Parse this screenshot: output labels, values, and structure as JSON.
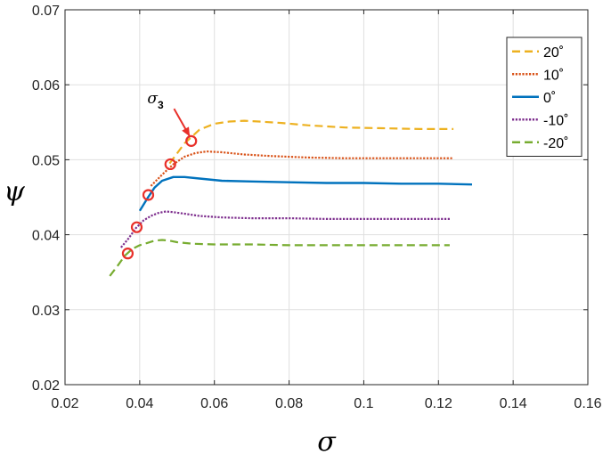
{
  "chart_data": {
    "type": "line",
    "xlabel": "σ",
    "ylabel": "ψ",
    "xlim": [
      0.02,
      0.16
    ],
    "ylim": [
      0.02,
      0.07
    ],
    "xticks": [
      "0.02",
      "0.04",
      "0.06",
      "0.08",
      "0.1",
      "0.12",
      "0.14",
      "0.16"
    ],
    "yticks": [
      "0.02",
      "0.03",
      "0.04",
      "0.05",
      "0.06",
      "0.07"
    ],
    "grid": true,
    "legend_position": "top-right",
    "series": [
      {
        "name": "20˚",
        "color": "#EDB120",
        "dash": "dashed",
        "x": [
          0.048,
          0.052,
          0.056,
          0.06,
          0.064,
          0.068,
          0.072,
          0.078,
          0.085,
          0.095,
          0.105,
          0.115,
          0.124
        ],
        "y": [
          0.0495,
          0.0522,
          0.054,
          0.0548,
          0.0551,
          0.0552,
          0.0551,
          0.0549,
          0.0546,
          0.0543,
          0.0542,
          0.0541,
          0.0541
        ]
      },
      {
        "name": "10˚",
        "color": "#D95319",
        "dash": "dotted",
        "x": [
          0.043,
          0.046,
          0.049,
          0.052,
          0.055,
          0.058,
          0.062,
          0.068,
          0.075,
          0.085,
          0.095,
          0.105,
          0.115,
          0.124
        ],
        "y": [
          0.0465,
          0.048,
          0.0494,
          0.0504,
          0.0509,
          0.0511,
          0.051,
          0.0507,
          0.0505,
          0.0503,
          0.0502,
          0.0502,
          0.0502,
          0.0502
        ]
      },
      {
        "name": "0˚",
        "color": "#0072BD",
        "dash": "solid",
        "x": [
          0.04,
          0.042,
          0.044,
          0.046,
          0.049,
          0.052,
          0.056,
          0.062,
          0.07,
          0.08,
          0.09,
          0.1,
          0.11,
          0.12,
          0.129
        ],
        "y": [
          0.0432,
          0.0448,
          0.0463,
          0.0472,
          0.0477,
          0.0477,
          0.0475,
          0.0472,
          0.0471,
          0.047,
          0.0469,
          0.0469,
          0.0468,
          0.0468,
          0.0467
        ]
      },
      {
        "name": "-10˚",
        "color": "#7E2F8E",
        "dash": "dotted",
        "x": [
          0.035,
          0.037,
          0.039,
          0.041,
          0.043,
          0.045,
          0.047,
          0.049,
          0.052,
          0.056,
          0.062,
          0.07,
          0.08,
          0.09,
          0.1,
          0.11,
          0.123
        ],
        "y": [
          0.0383,
          0.0395,
          0.0409,
          0.0419,
          0.0425,
          0.0429,
          0.0431,
          0.043,
          0.0428,
          0.0425,
          0.0423,
          0.0422,
          0.0422,
          0.0421,
          0.0421,
          0.0421,
          0.0421
        ]
      },
      {
        "name": "-20˚",
        "color": "#77AC30",
        "dash": "dashed",
        "x": [
          0.032,
          0.034,
          0.036,
          0.038,
          0.04,
          0.042,
          0.044,
          0.046,
          0.048,
          0.05,
          0.054,
          0.06,
          0.07,
          0.08,
          0.09,
          0.1,
          0.11,
          0.123
        ],
        "y": [
          0.0345,
          0.0358,
          0.0372,
          0.0381,
          0.0386,
          0.0389,
          0.0392,
          0.0393,
          0.0392,
          0.039,
          0.0388,
          0.0387,
          0.0387,
          0.0386,
          0.0386,
          0.0386,
          0.0386,
          0.0386
        ]
      }
    ],
    "markers": [
      {
        "x": 0.0538,
        "y": 0.0525
      },
      {
        "x": 0.0482,
        "y": 0.0494
      },
      {
        "x": 0.0423,
        "y": 0.0453
      },
      {
        "x": 0.0392,
        "y": 0.041
      },
      {
        "x": 0.0368,
        "y": 0.0375
      }
    ],
    "annotation": {
      "text": "σ",
      "subscript": "3",
      "arrow_from": {
        "x": 0.0492,
        "y": 0.0568
      },
      "arrow_to": {
        "x": 0.0534,
        "y": 0.0531
      }
    }
  },
  "colors": {
    "marker": "#E8302A",
    "axis": "#262626",
    "grid": "#DFDFDF",
    "arrow": "#E8302A"
  }
}
